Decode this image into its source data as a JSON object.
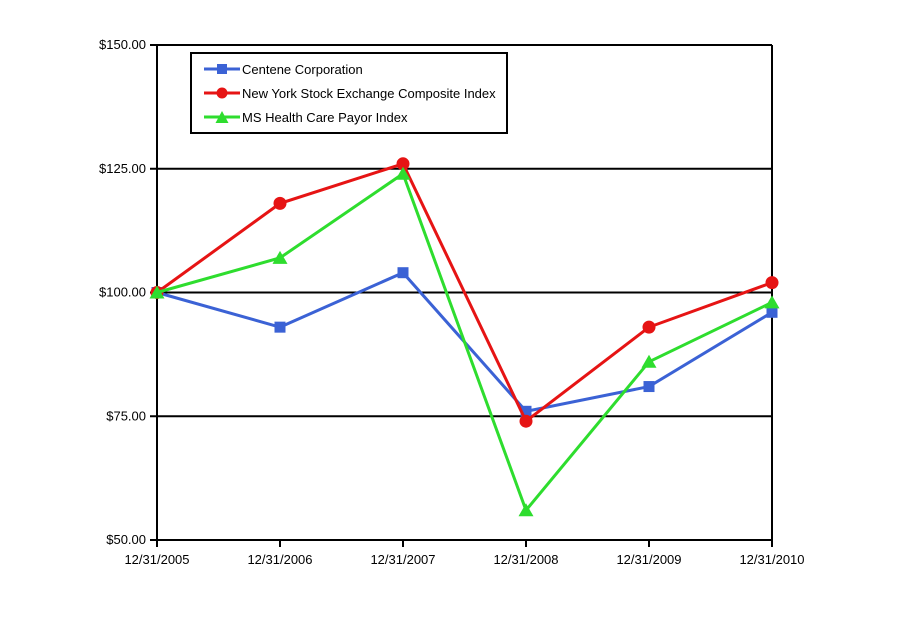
{
  "chart_data": {
    "type": "line",
    "title": "",
    "xlabel": "",
    "ylabel": "",
    "categories": [
      "12/31/2005",
      "12/31/2006",
      "12/31/2007",
      "12/31/2008",
      "12/31/2009",
      "12/31/2010"
    ],
    "series": [
      {
        "name": "Centene Corporation",
        "color": "#3B62D5",
        "marker": "square",
        "values": [
          100,
          93,
          104,
          76,
          81,
          96
        ]
      },
      {
        "name": "New York Stock Exchange Composite Index",
        "color": "#E61414",
        "marker": "circle",
        "values": [
          100,
          118,
          126,
          74,
          93,
          102
        ]
      },
      {
        "name": "MS Health Care Payor Index",
        "color": "#2EDD2E",
        "marker": "triangle",
        "values": [
          100,
          107,
          124,
          56,
          86,
          98
        ]
      }
    ],
    "y_axis": {
      "min": 50,
      "max": 150,
      "step": 25,
      "tick_labels": [
        "$50.00",
        "$75.00",
        "$100.00",
        "$125.00",
        "$150.00"
      ]
    },
    "x_axis": {
      "tick_labels": [
        "12/31/2005",
        "12/31/2006",
        "12/31/2007",
        "12/31/2008",
        "12/31/2009",
        "12/31/2010"
      ]
    },
    "grid": "horizontal",
    "legend_position": "top-left-inside",
    "axis_color": "#000000",
    "background_color": "#FFFFFF"
  }
}
